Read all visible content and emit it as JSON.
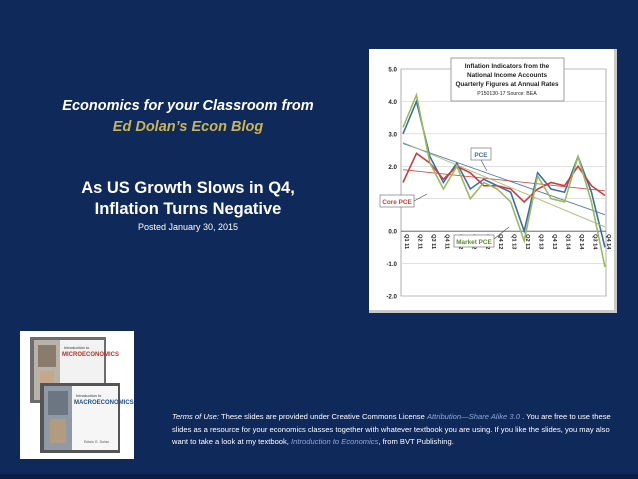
{
  "slide": {
    "blog_line1": "Economics for your Classroom from",
    "blog_line2": "Ed Dolan’s Econ Blog",
    "headline_line1": "As US Growth Slows in Q4,",
    "headline_line2": "Inflation Turns Negative",
    "posted": "Posted January 30, 2015"
  },
  "colors": {
    "background": "#10295b",
    "gold": "#c9b458",
    "link": "#8ea7d9"
  },
  "book": {
    "top_title": "Introduction to MICROECONOMICS",
    "bottom_title": "Introduction to MACROECONOMICS",
    "author": "Edwin G. Dolan"
  },
  "terms": {
    "prefix": "Terms of Use:",
    "text1": " These slides are provided under Creative Commons License ",
    "license_link": "Attribution—Share Alike 3.0",
    "text2": " . You are free to use these slides as a resource for your economics classes together with whatever textbook you are using. If you like the slides, you may also want to take a look at my textbook, ",
    "textbook_link": "Introduction to Economics",
    "text3": ", from BVT Publishing."
  },
  "chart_data": {
    "type": "line",
    "title": "Inflation Indicators from the National Income Accounts Quarterly Figures at Annual Rates",
    "subtitle": "P150130-17 Source: BEA",
    "ylim": [
      -2.0,
      5.0
    ],
    "yticks": [
      "5.0",
      "4.0",
      "3.0",
      "2.0",
      "1.0",
      "0.0",
      "-1.0",
      "-2.0"
    ],
    "categories": [
      "Q1 11",
      "Q2 11",
      "Q3 11",
      "Q4 11",
      "Q1 12",
      "Q2 12",
      "Q3 12",
      "Q4 12",
      "Q1 13",
      "Q2 13",
      "Q3 13",
      "Q4 13",
      "Q1 14",
      "Q2 14",
      "Q3 14",
      "Q4 14"
    ],
    "series": [
      {
        "name": "PCE",
        "color": "#3b6db5",
        "values": [
          3.0,
          4.0,
          2.3,
          1.5,
          2.1,
          1.3,
          1.6,
          1.4,
          1.2,
          0.0,
          1.8,
          1.3,
          1.2,
          2.3,
          1.2,
          -0.5
        ]
      },
      {
        "name": "Core PCE",
        "color": "#d13a3a",
        "values": [
          1.5,
          2.4,
          2.1,
          1.6,
          2.0,
          1.8,
          1.4,
          1.4,
          1.3,
          0.9,
          1.3,
          1.5,
          1.4,
          2.0,
          1.4,
          1.1
        ]
      },
      {
        "name": "Market PCE",
        "color": "#9bbb59",
        "values": [
          3.2,
          4.2,
          2.1,
          1.3,
          2.0,
          1.0,
          1.5,
          1.3,
          0.9,
          -0.3,
          1.7,
          1.0,
          0.9,
          2.3,
          0.9,
          -1.1
        ]
      }
    ],
    "labels": {
      "pce": "PCE",
      "core_pce": "Core PCE",
      "market_pce": "Market PCE"
    }
  }
}
